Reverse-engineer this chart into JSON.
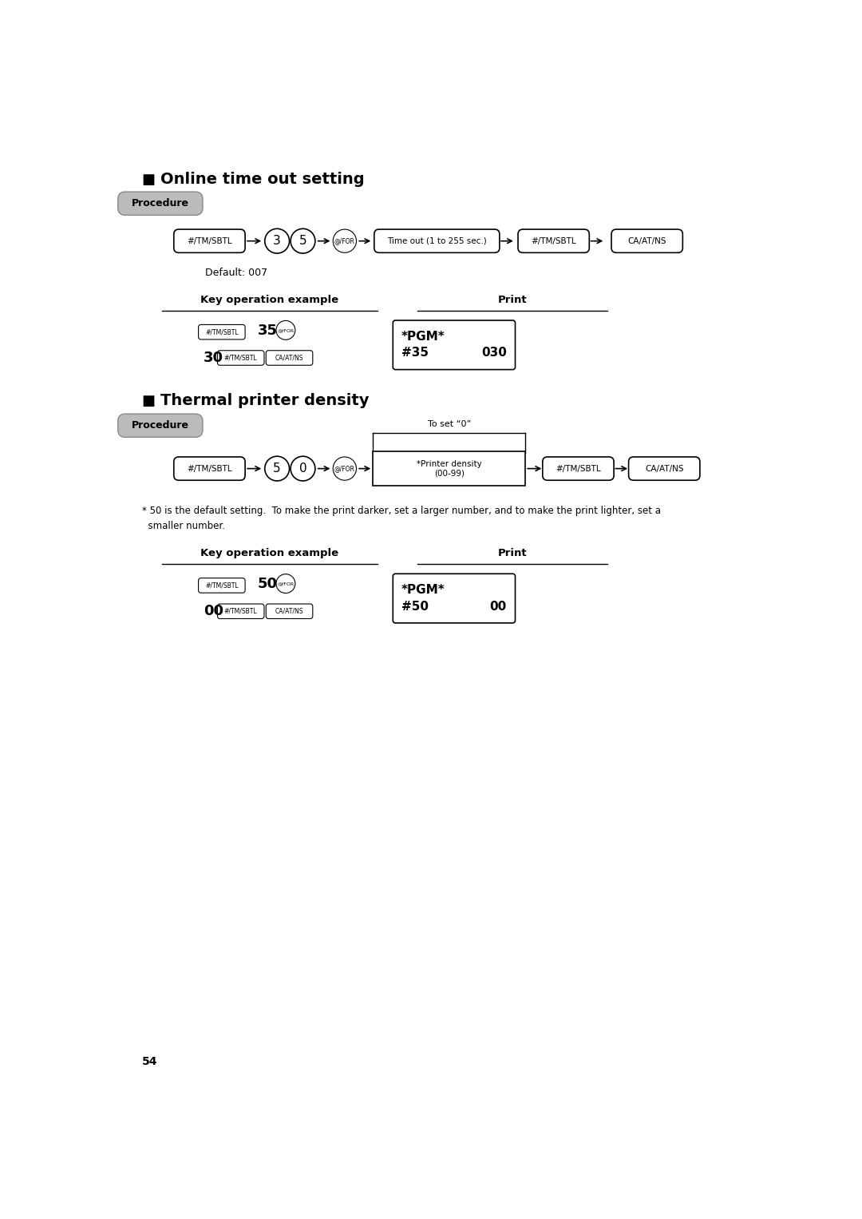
{
  "title1": "Online time out setting",
  "title2": "Thermal printer density",
  "procedure_label": "Procedure",
  "default_text": "Default: 007",
  "to_set_zero": "To set “0”",
  "note_text": "* 50 is the default setting.  To make the print darker, set a larger number, and to make the print lighter, set a\n  smaller number.",
  "key_op_label": "Key operation example",
  "print_label": "Print",
  "sec1_print_line1": "*PGM*",
  "sec1_print_line2": "#35",
  "sec1_print_line2_right": "030",
  "sec2_print_line1": "*PGM*",
  "sec2_print_line2": "#50",
  "sec2_print_line2_right": "00",
  "page_number": "54",
  "bg_color": "#ffffff"
}
